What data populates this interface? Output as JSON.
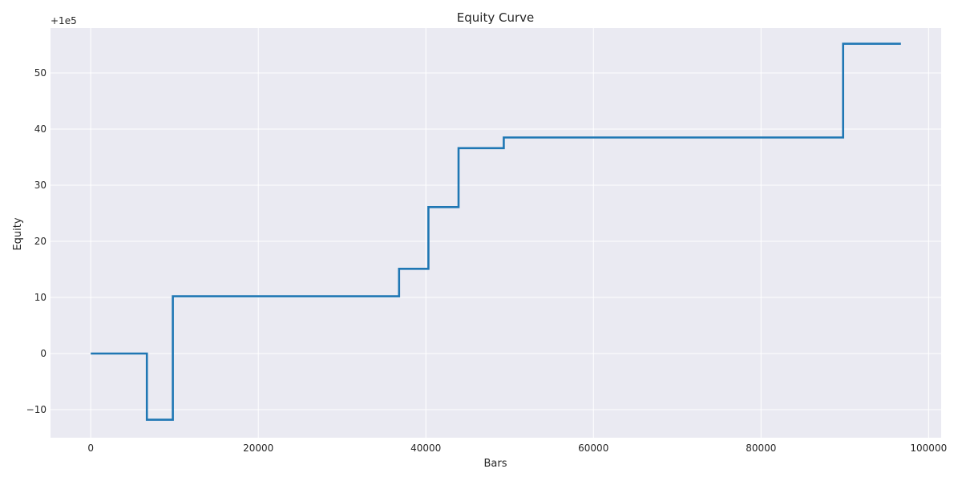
{
  "chart_data": {
    "type": "line",
    "title": "Equity Curve",
    "xlabel": "Bars",
    "ylabel": "Equity",
    "y_offset_label": "+1e5",
    "xlim": [
      -4800,
      101500
    ],
    "ylim": [
      -15,
      58
    ],
    "x_ticks": [
      0,
      20000,
      40000,
      60000,
      80000,
      100000
    ],
    "x_tick_labels": [
      "0",
      "20000",
      "40000",
      "60000",
      "80000",
      "100000"
    ],
    "y_ticks": [
      -10,
      0,
      10,
      20,
      30,
      40,
      50
    ],
    "y_tick_labels": [
      "−10",
      "0",
      "10",
      "20",
      "30",
      "40",
      "50"
    ],
    "grid": true,
    "step": "post",
    "series": [
      {
        "color": "#1f77b4",
        "x": [
          0,
          6700,
          9800,
          36800,
          40300,
          43900,
          49300,
          89800,
          96700
        ],
        "y": [
          0,
          -11.8,
          10.2,
          15.1,
          26.1,
          36.6,
          38.5,
          55.2,
          55.2
        ]
      }
    ]
  }
}
